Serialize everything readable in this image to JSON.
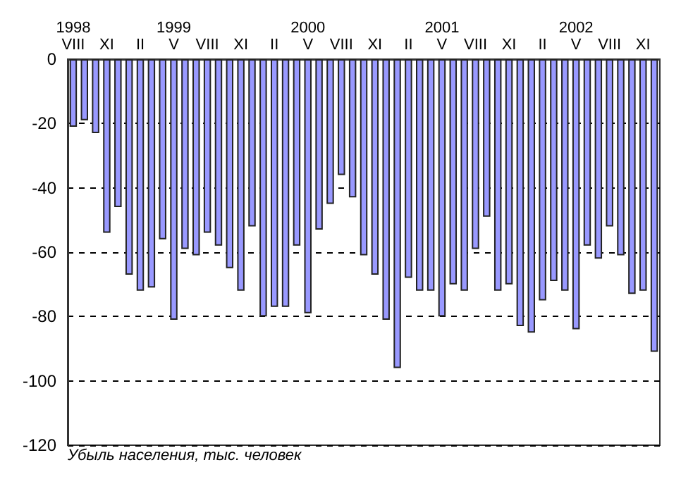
{
  "chart_data": {
    "type": "bar",
    "categories": [
      "1998\nVIII",
      null,
      null,
      "XI",
      null,
      null,
      "II",
      null,
      null,
      "1999\nV",
      null,
      null,
      "VIII",
      null,
      null,
      "XI",
      null,
      null,
      "II",
      null,
      null,
      "2000\nV",
      null,
      null,
      "VIII",
      null,
      null,
      "XI",
      null,
      null,
      "II",
      null,
      null,
      "2001\nV",
      null,
      null,
      "VIII",
      null,
      null,
      "XI",
      null,
      null,
      "II",
      null,
      null,
      "2002\nV",
      null,
      null,
      "VIII",
      null,
      null,
      "XI",
      null
    ],
    "values": [
      -21,
      -19,
      -23,
      -54,
      -46,
      -67,
      -72,
      -71,
      -56,
      -81,
      -59,
      -61,
      -54,
      -58,
      -65,
      -72,
      -52,
      -80,
      -77,
      -77,
      -58,
      -79,
      -53,
      -45,
      -36,
      -43,
      -61,
      -67,
      -81,
      -96,
      -68,
      -72,
      -72,
      -80,
      -70,
      -72,
      -59,
      -49,
      -72,
      -70,
      -83,
      -85,
      -75,
      -69,
      -72,
      -84,
      -58,
      -62,
      -52,
      -61,
      -73,
      -72,
      -91
    ],
    "color": "#9999ff",
    "ylim": [
      -120,
      0
    ],
    "yticks": [
      -120,
      -100,
      -80,
      -60,
      -40,
      -20,
      0
    ],
    "grid": "y",
    "annotations": [
      "Убыль населения, тыс. человек"
    ]
  }
}
